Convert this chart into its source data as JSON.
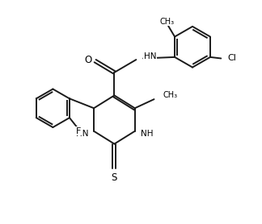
{
  "bg_color": "#ffffff",
  "line_color": "#1a1a1a",
  "line_width": 1.4,
  "font_size": 7.5,
  "xlim": [
    0,
    10
  ],
  "ylim": [
    0,
    8.6
  ]
}
